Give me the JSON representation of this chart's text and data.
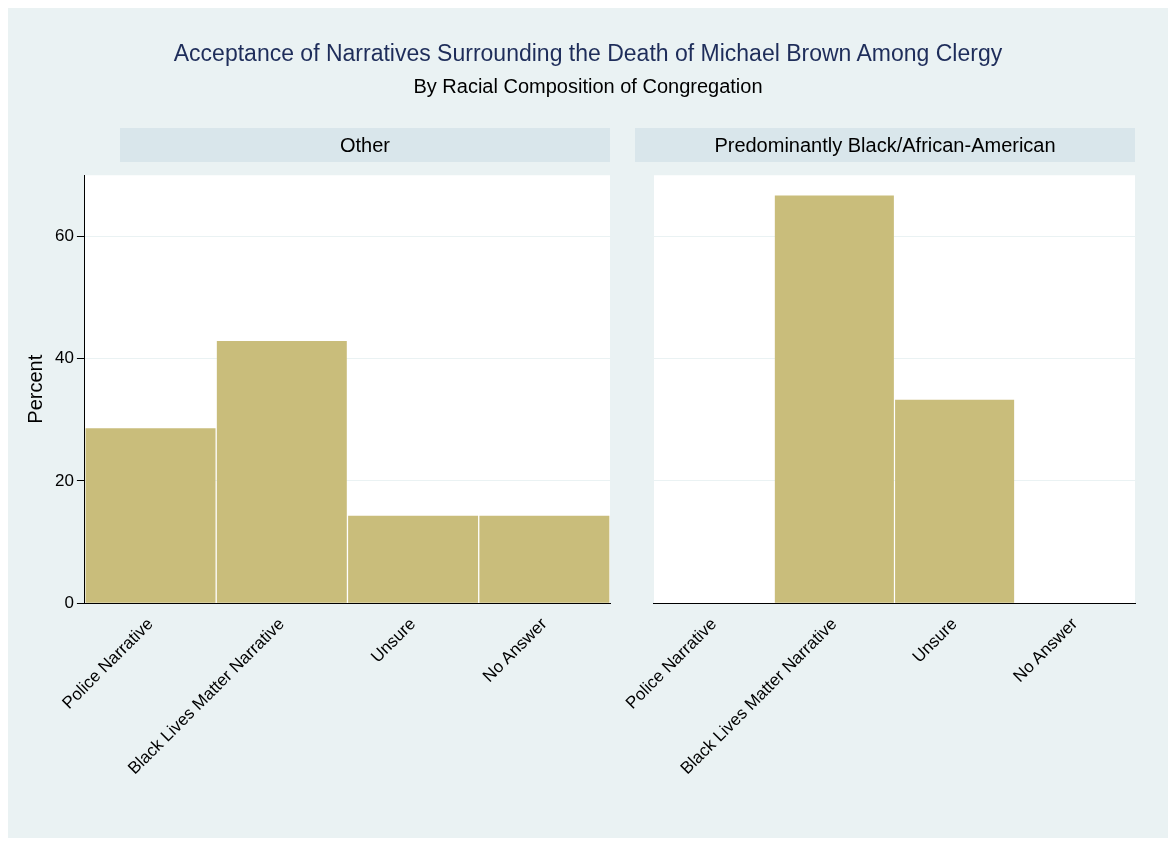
{
  "chart_data": [
    {
      "type": "bar",
      "title": "Other",
      "annotations": [
        "Acceptance of Narratives Surrounding the Death of Michael Brown Among Clergy",
        "By Racial Composition of Congregation"
      ],
      "ylabel": "Percent",
      "categories": [
        "Police Narrative",
        "Black Lives Matter Narrative",
        "Unsure",
        "No Answer"
      ],
      "values": [
        28.6,
        42.9,
        14.3,
        14.3
      ],
      "color": "#c9bd7b",
      "ylim": [
        0,
        70
      ],
      "yticks": [
        0,
        20,
        40,
        60
      ],
      "grid": "y",
      "legend": false
    },
    {
      "type": "bar",
      "title": "Predominantly Black/African-American",
      "categories": [
        "Police Narrative",
        "Black Lives Matter Narrative",
        "Unsure",
        "No Answer"
      ],
      "values": [
        0,
        66.7,
        33.3,
        0
      ],
      "color": "#c9bd7b",
      "ylim": [
        0,
        70
      ],
      "yticks": [
        0,
        20,
        40,
        60
      ],
      "grid": "y",
      "legend": false,
      "tick_labels": "x"
    }
  ]
}
